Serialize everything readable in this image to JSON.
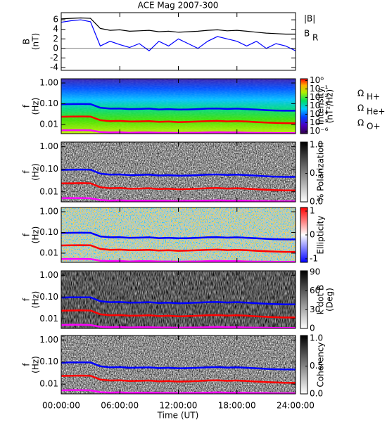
{
  "chart_data": {
    "type": "multi-panel",
    "title": "ACE Mag 2007-300",
    "xlabel": "Time (UT)",
    "xlim": [
      0,
      24
    ],
    "xticks": [
      {
        "value": 0,
        "label": "00:00:00"
      },
      {
        "value": 6,
        "label": "06:00:00"
      },
      {
        "value": 12,
        "label": "12:00:00"
      },
      {
        "value": 18,
        "label": "18:00:00"
      },
      {
        "value": 24,
        "label": "24:00:00"
      }
    ],
    "x": [
      0,
      1,
      2,
      3,
      4,
      5,
      6,
      7,
      8,
      9,
      10,
      11,
      12,
      13,
      14,
      15,
      16,
      17,
      18,
      19,
      20,
      21,
      22,
      23,
      24
    ],
    "gyrofrequencies": [
      {
        "symbol": "Ω",
        "subscript": "H+",
        "color": "#0000ff",
        "values": [
          0.094,
          0.096,
          0.097,
          0.096,
          0.064,
          0.058,
          0.059,
          0.055,
          0.056,
          0.058,
          0.053,
          0.055,
          0.052,
          0.053,
          0.055,
          0.058,
          0.059,
          0.056,
          0.058,
          0.055,
          0.052,
          0.049,
          0.047,
          0.046,
          0.046
        ]
      },
      {
        "symbol": "Ω",
        "subscript": "He+",
        "color": "#ff0000",
        "values": [
          0.0235,
          0.024,
          0.0243,
          0.024,
          0.016,
          0.0145,
          0.0148,
          0.0138,
          0.014,
          0.0145,
          0.0133,
          0.0138,
          0.013,
          0.0133,
          0.0138,
          0.0145,
          0.0148,
          0.014,
          0.0145,
          0.0138,
          0.013,
          0.0123,
          0.0118,
          0.0115,
          0.0115
        ]
      },
      {
        "symbol": "Ω",
        "subscript": "O+",
        "color": "#ff00ff",
        "values": [
          0.0052,
          0.0053,
          0.0053,
          0.0052,
          0.0043,
          0.0041,
          0.0042,
          0.004,
          0.0041,
          0.0041,
          0.004,
          0.004,
          0.0039,
          0.004,
          0.004,
          0.0041,
          0.0042,
          0.0041,
          0.0041,
          0.004,
          0.0039,
          0.0039,
          0.0038,
          0.0038,
          0.0038
        ]
      }
    ],
    "panels": [
      {
        "type": "line",
        "ylabel": [
          "B",
          "(nT)"
        ],
        "ylim": [
          -4.6,
          7.5
        ],
        "yticks": [
          -4,
          -2,
          0,
          2,
          4,
          6
        ],
        "series": [
          {
            "name": "|B|",
            "color": "#000000",
            "values": [
              6.2,
              6.3,
              6.4,
              6.3,
              4.2,
              3.8,
              3.9,
              3.6,
              3.7,
              3.8,
              3.5,
              3.6,
              3.4,
              3.5,
              3.6,
              3.8,
              3.9,
              3.7,
              3.8,
              3.6,
              3.4,
              3.2,
              3.1,
              3.0,
              3.0
            ]
          },
          {
            "name": "B",
            "subscript": "R",
            "color": "#0000ff",
            "values": [
              5.5,
              5.8,
              6.0,
              5.6,
              0.5,
              1.5,
              0.8,
              0.2,
              1.0,
              -0.5,
              1.5,
              0.5,
              2.0,
              1.0,
              0.0,
              1.5,
              2.5,
              2.0,
              1.5,
              0.5,
              1.5,
              0.0,
              1.0,
              0.5,
              -0.5
            ]
          }
        ]
      },
      {
        "type": "spectrogram",
        "ylabel": [
          "f",
          "(Hz)"
        ],
        "ylim": [
          0.0036,
          1.6
        ],
        "log_y": true,
        "yticks": [
          {
            "value": 1,
            "label": "1.00"
          },
          {
            "value": 0.1,
            "label": "0.10"
          },
          {
            "value": 0.01,
            "label": "0.01"
          }
        ],
        "colorbar": {
          "label": [
            "Intensity",
            "(nT²/Hz)"
          ],
          "colormap": "rainbow",
          "log": true,
          "lim": [
            5e-07,
            1.6
          ],
          "ticks": [
            {
              "value": 1,
              "label": "10⁰"
            },
            {
              "value": 0.1,
              "label": "10⁻¹"
            },
            {
              "value": 0.01,
              "label": "10⁻²"
            },
            {
              "value": 0.001,
              "label": "10⁻³"
            },
            {
              "value": 0.0001,
              "label": "10⁻⁴"
            },
            {
              "value": 1e-05,
              "label": "10⁻⁵"
            },
            {
              "value": 1e-06,
              "label": "10⁻⁶"
            }
          ]
        },
        "legend": true
      },
      {
        "type": "spectrogram",
        "ylabel": [
          "f",
          "(Hz)"
        ],
        "ylim": [
          0.0036,
          1.6
        ],
        "log_y": true,
        "yticks": [
          {
            "value": 1,
            "label": "1.00"
          },
          {
            "value": 0.1,
            "label": "0.10"
          },
          {
            "value": 0.01,
            "label": "0.01"
          }
        ],
        "colorbar": {
          "label": [
            "% Polarization"
          ],
          "colormap": "gray",
          "lim": [
            0,
            1.05
          ],
          "ticks": [
            {
              "value": 0,
              "label": "0.0"
            },
            {
              "value": 0.5,
              "label": "0.5"
            },
            {
              "value": 1,
              "label": "1.0"
            }
          ]
        }
      },
      {
        "type": "spectrogram",
        "ylabel": [
          "f",
          "(Hz)"
        ],
        "ylim": [
          0.0036,
          1.6
        ],
        "log_y": true,
        "yticks": [
          {
            "value": 1,
            "label": "1.00"
          },
          {
            "value": 0.1,
            "label": "0.10"
          },
          {
            "value": 0.01,
            "label": "0.01"
          }
        ],
        "colorbar": {
          "label": [
            "Ellipticity"
          ],
          "colormap": "bwr",
          "lim": [
            -1.15,
            1.15
          ],
          "ticks": [
            -1,
            0,
            1
          ]
        }
      },
      {
        "type": "spectrogram",
        "ylabel": [
          "f",
          "(Hz)"
        ],
        "ylim": [
          0.0036,
          1.6
        ],
        "log_y": true,
        "yticks": [
          {
            "value": 1,
            "label": "1.00"
          },
          {
            "value": 0.1,
            "label": "0.10"
          },
          {
            "value": 0.01,
            "label": "0.01"
          }
        ],
        "colorbar": {
          "label": [
            "k dot B",
            "(Deg)"
          ],
          "colormap": "gray",
          "lim": [
            0,
            92
          ],
          "ticks": [
            0,
            30,
            60,
            90
          ]
        }
      },
      {
        "type": "spectrogram",
        "ylabel": [
          "f",
          "(Hz)"
        ],
        "ylim": [
          0.0036,
          1.6
        ],
        "log_y": true,
        "yticks": [
          {
            "value": 1,
            "label": "1.00"
          },
          {
            "value": 0.1,
            "label": "0.10"
          },
          {
            "value": 0.01,
            "label": "0.01"
          }
        ],
        "colorbar": {
          "label": [
            "Coherency"
          ],
          "colormap": "gray",
          "lim": [
            0,
            1.05
          ],
          "ticks": [
            {
              "value": 0,
              "label": "0.0"
            },
            {
              "value": 0.5,
              "label": "0.5"
            },
            {
              "value": 1,
              "label": "1.0"
            }
          ]
        }
      }
    ]
  }
}
